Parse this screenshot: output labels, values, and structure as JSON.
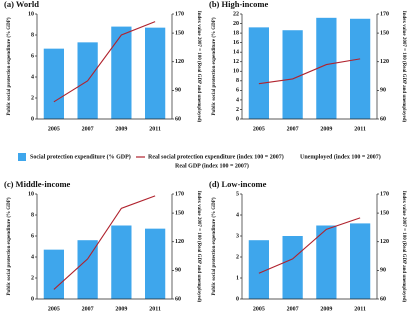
{
  "chart_data": [
    {
      "type": "combo",
      "title": "(a) World",
      "categories": [
        "2005",
        "2007",
        "2009",
        "2011"
      ],
      "ylabel": "Public social protection expenditure (% GDP)",
      "y2label": "Index value 2007 = 100 (Real GDP and unemployed)",
      "ylim": [
        0,
        10
      ],
      "yticks": [
        0,
        2,
        4,
        6,
        8,
        10
      ],
      "y2lim": [
        60,
        170
      ],
      "y2ticks": [
        60,
        90,
        120,
        150,
        170
      ],
      "series": [
        {
          "name": "Social protection expenditure (% GDP)",
          "type": "bar",
          "color": "#3ea6ec",
          "values": [
            6.7,
            7.3,
            8.8,
            8.7
          ]
        },
        {
          "name": "Real social protection expenditure (index 100 = 2007)",
          "type": "line",
          "axis": "y2",
          "color": "#b0232e",
          "values": [
            78,
            100,
            148,
            162
          ]
        }
      ]
    },
    {
      "type": "combo",
      "title": "(b) High-income",
      "categories": [
        "2005",
        "2007",
        "2009",
        "2011"
      ],
      "ylabel": "Public social protection expenditure (% GDP)",
      "y2label": "Index value 2007 = 100 (Real GDP and unemployed)",
      "ylim": [
        0,
        22
      ],
      "yticks": [
        0,
        2,
        4,
        6,
        8,
        10,
        12,
        14,
        16,
        18,
        20,
        22
      ],
      "y2lim": [
        60,
        170
      ],
      "y2ticks": [
        60,
        90,
        120,
        150,
        170
      ],
      "series": [
        {
          "name": "Social protection expenditure (% GDP)",
          "type": "bar",
          "color": "#3ea6ec",
          "values": [
            19.2,
            18.6,
            21.2,
            21.0
          ]
        },
        {
          "name": "Real social protection expenditure (index 100 = 2007)",
          "type": "line",
          "axis": "y2",
          "color": "#b0232e",
          "values": [
            97,
            102,
            117,
            123
          ]
        }
      ]
    },
    {
      "type": "combo",
      "title": "(c) Middle-income",
      "categories": [
        "2005",
        "2007",
        "2009",
        "2011"
      ],
      "ylabel": "Public social protection expenditure (% GDP)",
      "y2label": "Index value 2007 = 100 (Real GDP and unemployed)",
      "ylim": [
        0,
        10
      ],
      "yticks": [
        0,
        2,
        4,
        6,
        8,
        10
      ],
      "y2lim": [
        60,
        170
      ],
      "y2ticks": [
        60,
        90,
        120,
        150,
        170
      ],
      "series": [
        {
          "name": "Social protection expenditure (% GDP)",
          "type": "bar",
          "color": "#3ea6ec",
          "values": [
            4.7,
            5.6,
            7.0,
            6.7
          ]
        },
        {
          "name": "Real social protection expenditure (index 100 = 2007)",
          "type": "line",
          "axis": "y2",
          "color": "#b0232e",
          "values": [
            70,
            102,
            155,
            168
          ]
        }
      ]
    },
    {
      "type": "combo",
      "title": "(d) Low-income",
      "categories": [
        "2005",
        "2007",
        "2009",
        "2011"
      ],
      "ylabel": "Public social protection expenditure (% GDP)",
      "y2label": "Index value 2007 = 100 (Real GDP and unemployed)",
      "ylim": [
        0,
        5
      ],
      "yticks": [
        0,
        1,
        2,
        3,
        4,
        5
      ],
      "y2lim": [
        60,
        170
      ],
      "y2ticks": [
        60,
        90,
        120,
        150,
        170
      ],
      "series": [
        {
          "name": "Social protection expenditure (% GDP)",
          "type": "bar",
          "color": "#3ea6ec",
          "values": [
            2.8,
            3.0,
            3.5,
            3.6
          ]
        },
        {
          "name": "Real social protection expenditure (index 100 = 2007)",
          "type": "line",
          "axis": "y2",
          "color": "#b0232e",
          "values": [
            87,
            102,
            133,
            145
          ]
        }
      ]
    }
  ],
  "legend": [
    {
      "label": "Social protection expenditure (% GDP)",
      "color": "#3ea6ec"
    },
    {
      "label": "Real social protection expenditure (index 100 = 2007)",
      "color": "#b0232e"
    },
    {
      "label": "Real GDP (index 100 = 2007)"
    },
    {
      "label": "Unemployed (index 100 = 2007)"
    }
  ]
}
